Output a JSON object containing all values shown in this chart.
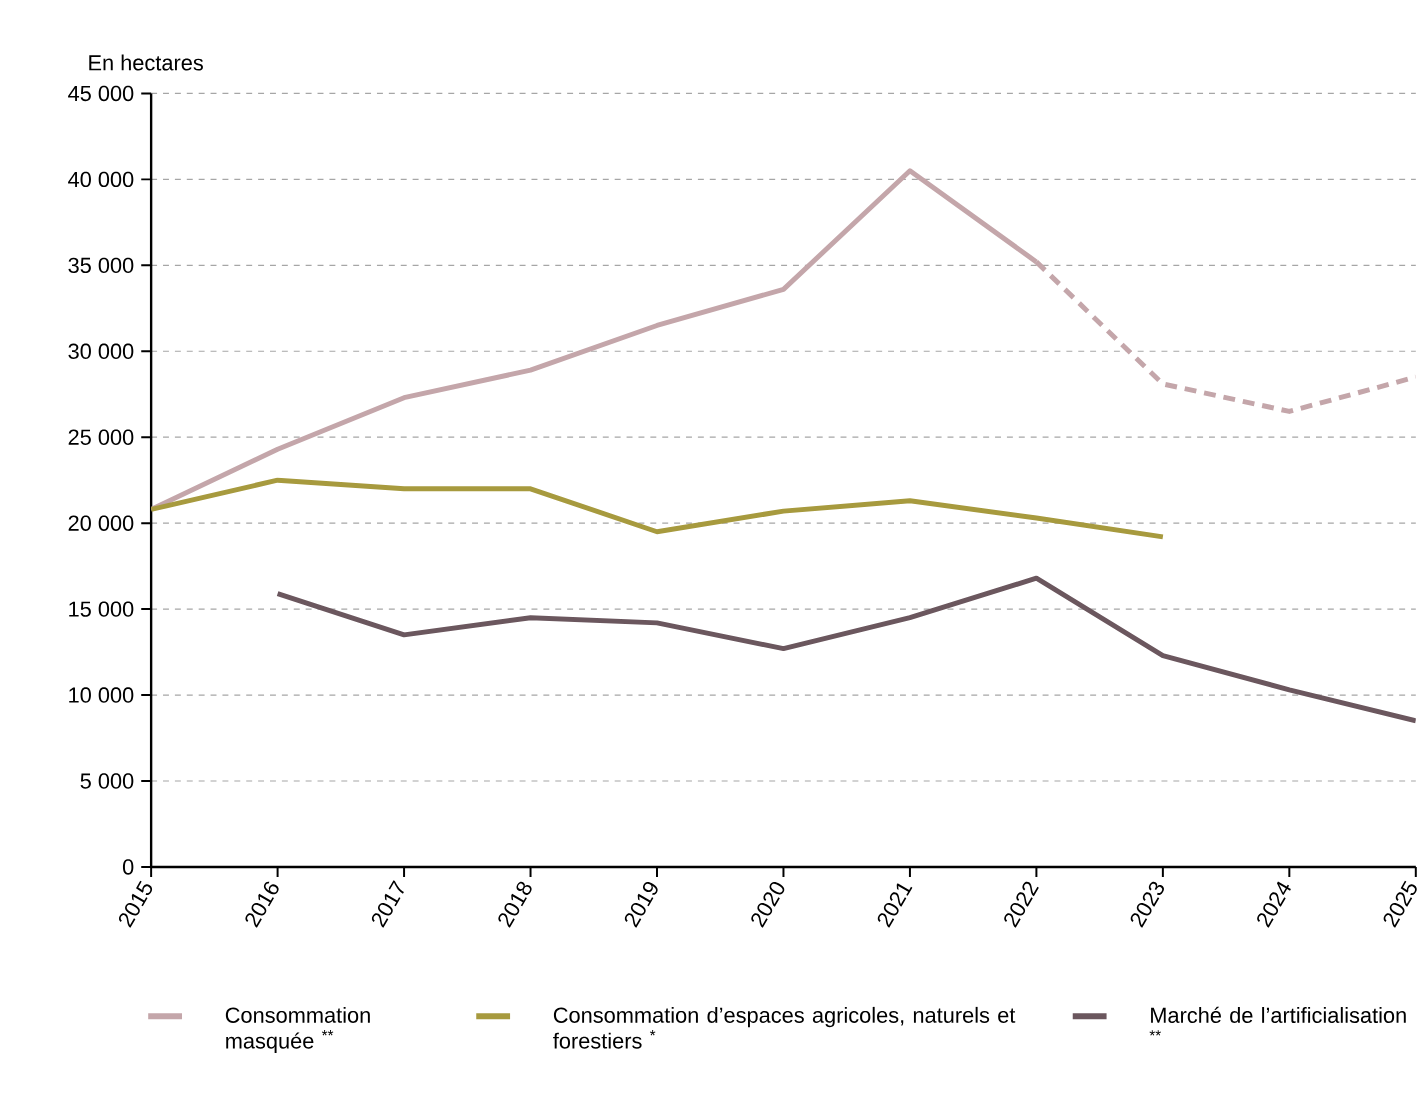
{
  "chart_data": {
    "type": "line",
    "ylabel": "En hectares",
    "series": [
      {
        "name": "Consommation masquée $^{**}$",
        "color": "#c4a6aa",
        "x": [
          2015,
          2016,
          2017,
          2018,
          2019,
          2020,
          2021,
          2022
        ],
        "values": [
          20800,
          24300,
          27300,
          28900,
          31500,
          33600,
          40500,
          35200
        ],
        "line_style": "solid"
      },
      {
        "color": "#c4a6aa",
        "x": [
          2022,
          2023,
          2024,
          2025
        ],
        "values": [
          35200,
          28100,
          26500,
          28500
        ],
        "line_style": "dashed"
      },
      {
        "name": "Consommation d’espaces agricoles, naturels et forestiers $^{*}$",
        "color": "#a79a3e",
        "x": [
          2015,
          2016,
          2017,
          2018,
          2019,
          2020,
          2021,
          2022,
          2023
        ],
        "values": [
          20800,
          22500,
          22000,
          22000,
          19500,
          20700,
          21300,
          20300,
          19200
        ],
        "line_style": "solid"
      },
      {
        "name": "Marché de l’artificialisation $^{**}$",
        "color": "#6b575e",
        "x": [
          2016,
          2017,
          2018,
          2019,
          2020,
          2021,
          2022,
          2023,
          2024,
          2025
        ],
        "values": [
          15900,
          13500,
          14500,
          14200,
          12700,
          14500,
          16800,
          12300,
          10300,
          8500
        ],
        "line_style": "solid"
      }
    ],
    "xlim": [
      2015,
      2025
    ],
    "xticks": [
      2015,
      2016,
      2017,
      2018,
      2019,
      2020,
      2021,
      2022,
      2023,
      2024,
      2025
    ],
    "ylim": [
      0,
      45000
    ],
    "yticks": [
      0,
      {
        "value": 5000,
        "label": "5 000"
      },
      {
        "value": 10000,
        "label": "10 000"
      },
      {
        "value": 15000,
        "label": "15 000"
      },
      {
        "value": 20000,
        "label": "20 000"
      },
      {
        "value": 25000,
        "label": "25 000"
      },
      {
        "value": 30000,
        "label": "30 000"
      },
      {
        "value": 35000,
        "label": "35 000"
      },
      {
        "value": 40000,
        "label": "40 000"
      },
      {
        "value": 45000,
        "label": "45 000"
      }
    ],
    "grid": "y",
    "legend": "bottom",
    "marker": "none"
  }
}
